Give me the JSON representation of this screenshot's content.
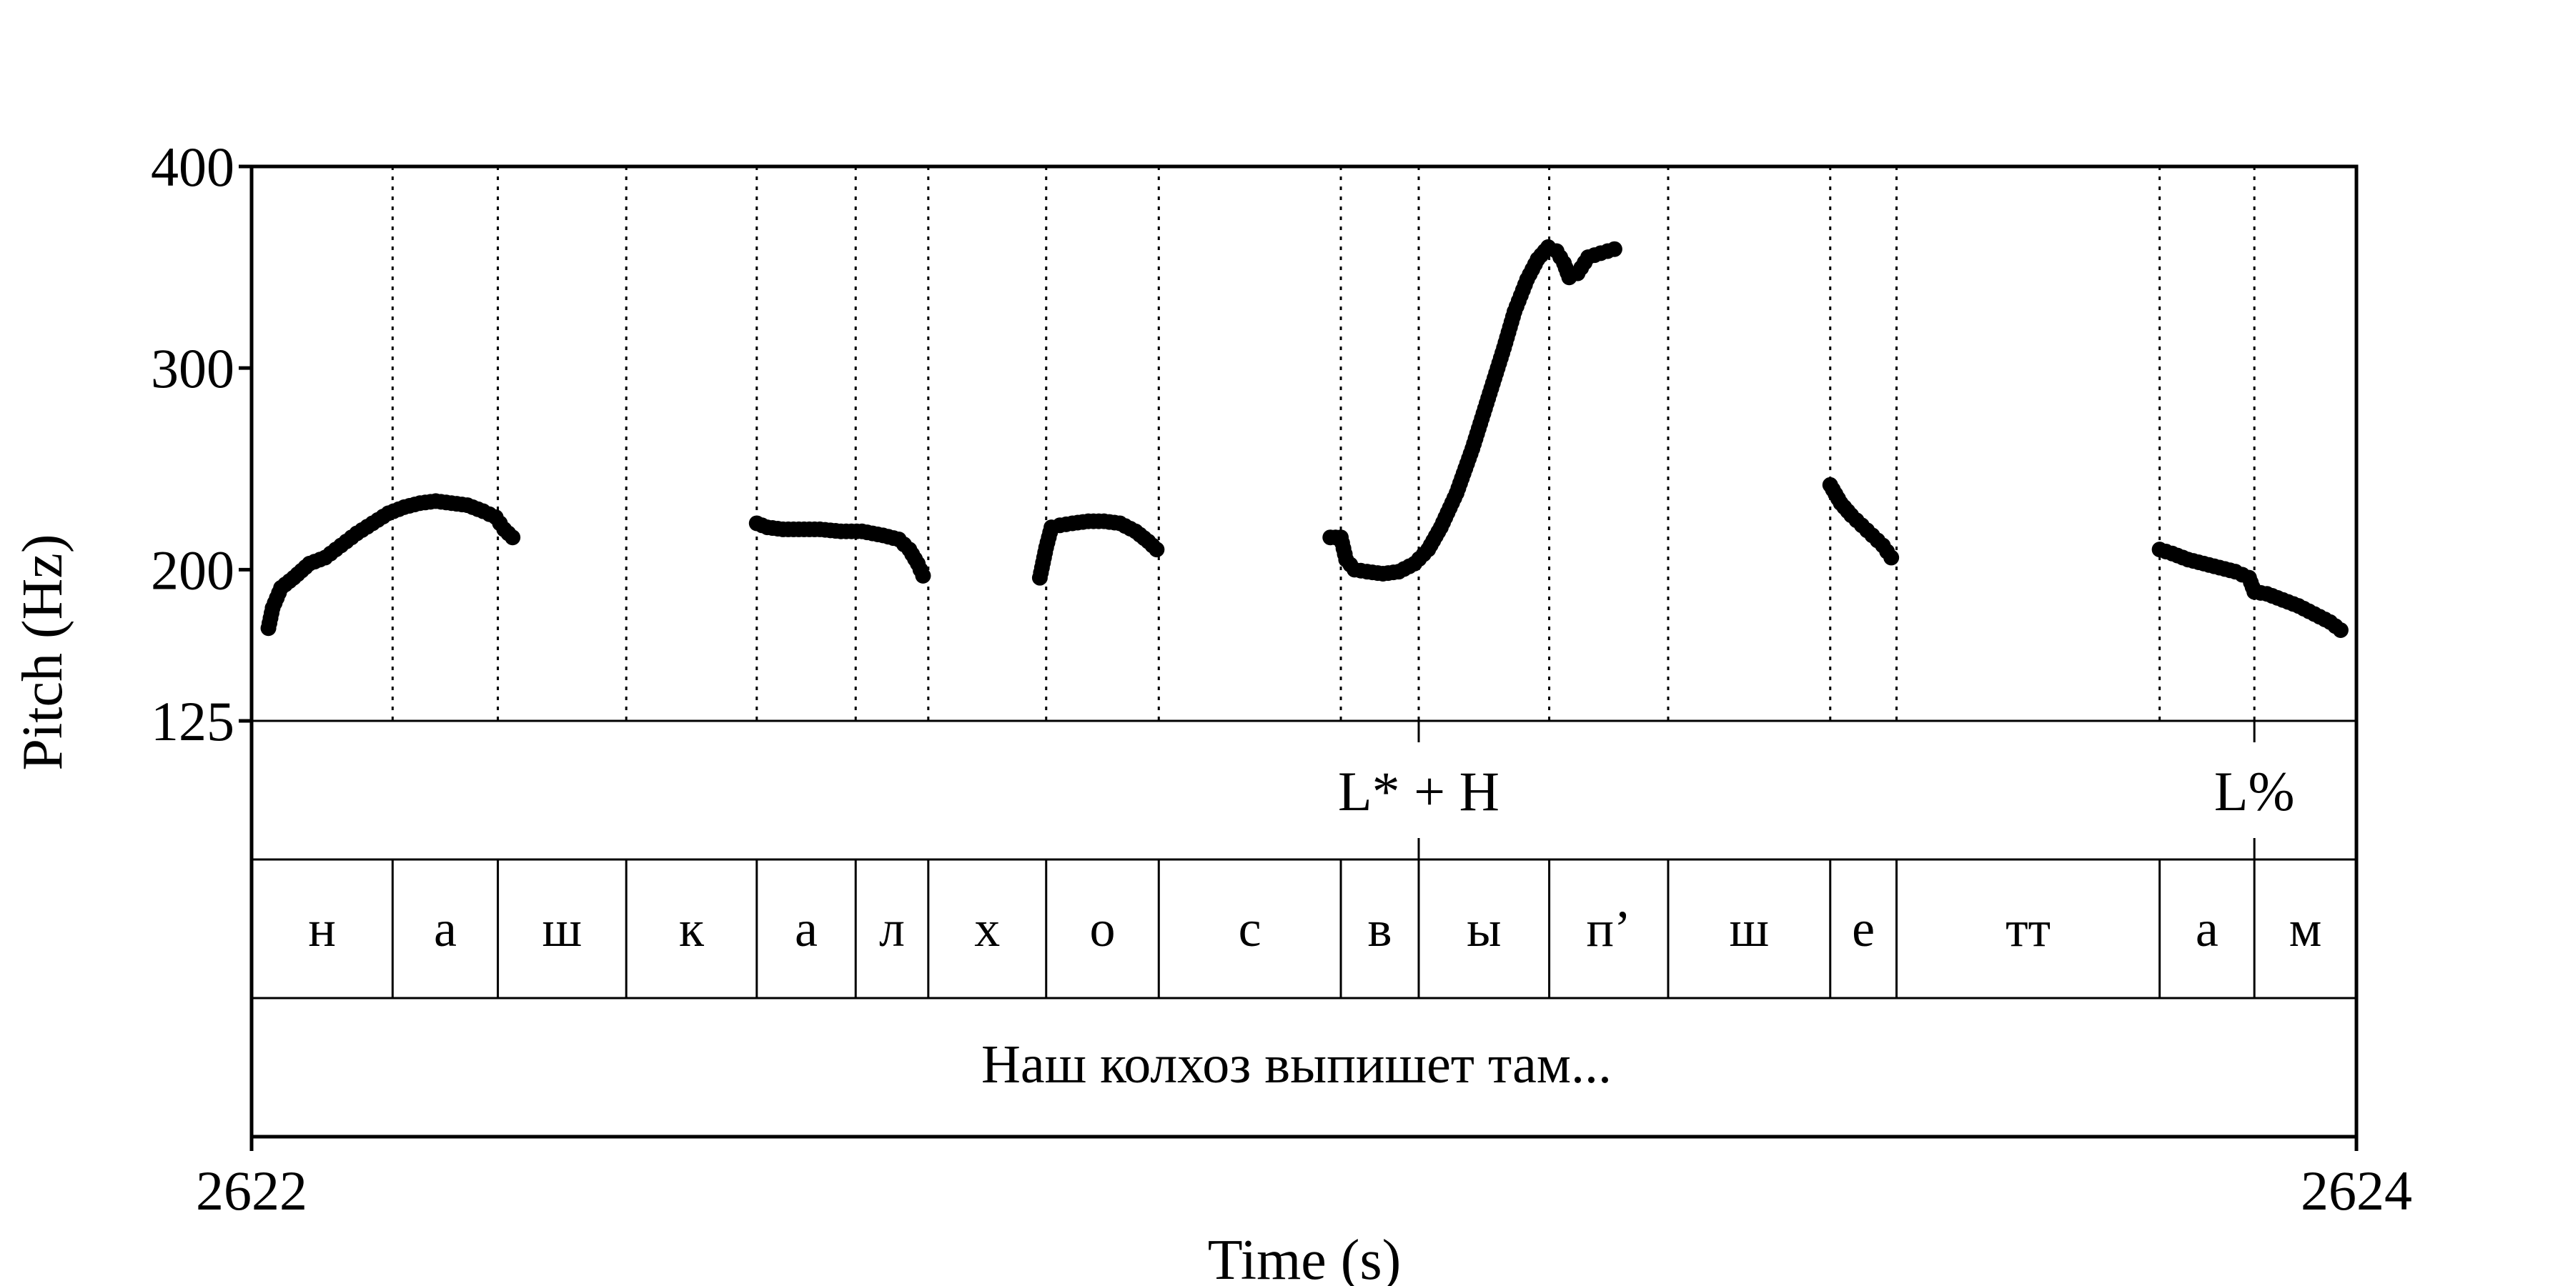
{
  "chart_data": {
    "type": "scatter",
    "xlabel": "Time (s)",
    "ylabel": "Pitch (Hz)",
    "xlim": [
      2622,
      2624
    ],
    "ylim": [
      125,
      400
    ],
    "x_tick_labels": [
      "2622",
      "2624"
    ],
    "y_tick_labels": [
      "400",
      "300",
      "200",
      "125"
    ],
    "y_ticks": [
      400,
      300,
      200,
      125
    ],
    "boundaries": [
      2622.134,
      2622.234,
      2622.356,
      2622.48,
      2622.574,
      2622.643,
      2622.755,
      2622.862,
      2623.035,
      2623.109,
      2623.233,
      2623.346,
      2623.5,
      2623.563,
      2623.813,
      2623.903
    ],
    "tones": [
      {
        "time": 2623.109,
        "label": "L* + H"
      },
      {
        "time": 2623.903,
        "label": "L%"
      }
    ],
    "segments": [
      "н",
      "а",
      "ш",
      "к",
      "а",
      "л",
      "х",
      "о",
      "с",
      "в",
      "ы",
      "п’",
      "ш",
      "е",
      "тт",
      "а",
      "м"
    ],
    "sentence": "Наш колхоз выпишет там...",
    "point_color": "#000000",
    "series": [
      {
        "values": [
          [
            2622.016,
            171
          ],
          [
            2622.02,
            181
          ],
          [
            2622.028,
            191
          ],
          [
            2622.04,
            196
          ],
          [
            2622.055,
            203
          ],
          [
            2622.07,
            206
          ],
          [
            2622.085,
            212
          ],
          [
            2622.1,
            218
          ],
          [
            2622.115,
            223
          ],
          [
            2622.13,
            228
          ],
          [
            2622.145,
            231
          ],
          [
            2622.16,
            233
          ],
          [
            2622.175,
            234
          ],
          [
            2622.19,
            233
          ],
          [
            2622.205,
            232
          ],
          [
            2622.22,
            229
          ],
          [
            2622.232,
            226
          ],
          [
            2622.24,
            220
          ],
          [
            2622.248,
            216
          ]
        ]
      },
      {
        "values": [
          [
            2622.48,
            223
          ],
          [
            2622.49,
            221
          ],
          [
            2622.505,
            220
          ],
          [
            2622.52,
            220
          ],
          [
            2622.54,
            220
          ],
          [
            2622.56,
            219
          ],
          [
            2622.58,
            219
          ],
          [
            2622.6,
            217
          ],
          [
            2622.615,
            215
          ],
          [
            2622.625,
            210
          ],
          [
            2622.633,
            203
          ],
          [
            2622.638,
            197
          ]
        ]
      },
      {
        "values": [
          [
            2622.749,
            196
          ],
          [
            2622.755,
            211
          ],
          [
            2622.76,
            221
          ],
          [
            2622.768,
            222
          ],
          [
            2622.78,
            223
          ],
          [
            2622.795,
            224
          ],
          [
            2622.81,
            224
          ],
          [
            2622.825,
            223
          ],
          [
            2622.84,
            219
          ],
          [
            2622.852,
            214
          ],
          [
            2622.86,
            210
          ]
        ]
      },
      {
        "values": [
          [
            2623.025,
            216
          ],
          [
            2623.035,
            216
          ],
          [
            2623.04,
            205
          ],
          [
            2623.048,
            200
          ],
          [
            2623.06,
            199
          ],
          [
            2623.075,
            198
          ],
          [
            2623.09,
            199
          ],
          [
            2623.105,
            203
          ],
          [
            2623.118,
            210
          ],
          [
            2623.13,
            221
          ],
          [
            2623.145,
            238
          ],
          [
            2623.16,
            260
          ],
          [
            2623.175,
            285
          ],
          [
            2623.19,
            310
          ],
          [
            2623.2,
            328
          ],
          [
            2623.212,
            344
          ],
          [
            2623.222,
            354
          ],
          [
            2623.232,
            360
          ],
          [
            2623.24,
            358
          ],
          [
            2623.247,
            352
          ],
          [
            2623.252,
            345
          ],
          [
            2623.26,
            347
          ],
          [
            2623.27,
            355
          ],
          [
            2623.282,
            357
          ],
          [
            2623.295,
            359
          ]
        ]
      },
      {
        "values": [
          [
            2623.5,
            242
          ],
          [
            2623.51,
            233
          ],
          [
            2623.52,
            227
          ],
          [
            2623.53,
            222
          ],
          [
            2623.54,
            217
          ],
          [
            2623.55,
            212
          ],
          [
            2623.558,
            206
          ]
        ]
      },
      {
        "values": [
          [
            2623.813,
            210
          ],
          [
            2623.825,
            208
          ],
          [
            2623.84,
            205
          ],
          [
            2623.855,
            203
          ],
          [
            2623.87,
            201
          ],
          [
            2623.885,
            199
          ],
          [
            2623.898,
            196
          ],
          [
            2623.903,
            189
          ],
          [
            2623.915,
            188
          ],
          [
            2623.93,
            185
          ],
          [
            2623.945,
            182
          ],
          [
            2623.96,
            178
          ],
          [
            2623.975,
            174
          ],
          [
            2623.985,
            170
          ]
        ]
      }
    ]
  }
}
